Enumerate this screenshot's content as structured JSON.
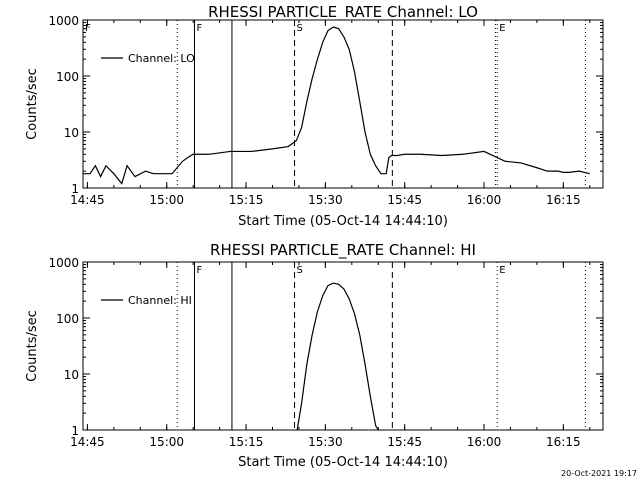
{
  "chart_data": [
    {
      "type": "line",
      "title": "RHESSI PARTICLE_RATE Channel: LO",
      "xlabel": "Start Time (05-Oct-14 14:44:10)",
      "ylabel": "Counts/sec",
      "y_scale": "log",
      "ylim": [
        1,
        1000
      ],
      "xlim": [
        "14:44:10",
        "16:22:30"
      ],
      "x_ticks": [
        "14:45",
        "15:00",
        "15:15",
        "15:30",
        "15:45",
        "16:00",
        "16:15"
      ],
      "y_ticks": [
        "1",
        "10",
        "100",
        "1000"
      ],
      "grid": false,
      "legend": "top-left",
      "series": [
        {
          "name": "Channel: LO",
          "x": [
            "14:44:10",
            "14:45:30",
            "14:46:30",
            "14:47:30",
            "14:48:30",
            "14:50:00",
            "14:51:30",
            "14:52:30",
            "14:54:00",
            "14:56:00",
            "14:57:30",
            "14:59:00",
            "15:01:00",
            "15:03:00",
            "15:04:00",
            "15:05:00",
            "15:08:00",
            "15:12:00",
            "15:16:00",
            "15:20:00",
            "15:23:00",
            "15:24:30",
            "15:25:30",
            "15:26:30",
            "15:27:30",
            "15:28:30",
            "15:29:30",
            "15:30:30",
            "15:31:30",
            "15:32:30",
            "15:33:30",
            "15:34:30",
            "15:35:30",
            "15:36:30",
            "15:37:30",
            "15:38:30",
            "15:39:30",
            "15:40:30",
            "15:41:30",
            "15:42:00",
            "15:42:30",
            "15:43:30",
            "15:45:00",
            "15:48:00",
            "15:52:00",
            "15:56:00",
            "16:00:00",
            "16:04:00",
            "16:07:00",
            "16:10:00",
            "16:12:00",
            "16:14:00",
            "16:15:00",
            "16:16:00",
            "16:18:00",
            "16:20:00"
          ],
          "y": [
            1.8,
            1.8,
            2.5,
            1.6,
            2.5,
            1.8,
            1.2,
            2.5,
            1.6,
            2.0,
            1.8,
            1.8,
            1.8,
            3.0,
            3.5,
            4.0,
            4.0,
            4.5,
            4.5,
            5.0,
            5.5,
            7.0,
            12,
            35,
            90,
            200,
            400,
            650,
            750,
            700,
            500,
            300,
            120,
            35,
            10,
            4,
            2.5,
            1.8,
            1.8,
            3.5,
            3.8,
            3.8,
            4.0,
            4.0,
            3.8,
            4.0,
            4.5,
            3.0,
            2.8,
            2.3,
            2.0,
            2.0,
            1.9,
            1.9,
            2.0,
            1.8
          ]
        }
      ],
      "annotations": [
        {
          "text": "F",
          "x": "14:44:10",
          "style": "dotted"
        },
        {
          "text": "F",
          "x": "15:05:15",
          "style": "solid"
        },
        {
          "text": "",
          "x": "15:12:20",
          "style": "solid"
        },
        {
          "text": "S",
          "x": "15:24:10",
          "style": "dashed"
        },
        {
          "text": "",
          "x": "15:42:40",
          "style": "dashed"
        },
        {
          "text": "E",
          "x": "16:02:30",
          "style": "dotted"
        },
        {
          "text": "",
          "x": "16:02:10",
          "style": "dotted"
        },
        {
          "text": "",
          "x": "16:19:10",
          "style": "dotted"
        },
        {
          "text": "",
          "x": "15:02:00",
          "style": "dotted"
        }
      ]
    },
    {
      "type": "line",
      "title": "RHESSI PARTICLE_RATE Channel: HI",
      "xlabel": "Start Time (05-Oct-14 14:44:10)",
      "ylabel": "Counts/sec",
      "y_scale": "log",
      "ylim": [
        1,
        1000
      ],
      "xlim": [
        "14:44:10",
        "16:22:30"
      ],
      "x_ticks": [
        "14:45",
        "15:00",
        "15:15",
        "15:30",
        "15:45",
        "16:00",
        "16:15"
      ],
      "y_ticks": [
        "1",
        "10",
        "100",
        "1000"
      ],
      "grid": false,
      "legend": "top-left",
      "series": [
        {
          "name": "Channel: HI",
          "x": [
            "15:24:40",
            "15:25:30",
            "15:26:30",
            "15:27:30",
            "15:28:30",
            "15:29:30",
            "15:30:30",
            "15:31:30",
            "15:32:30",
            "15:33:30",
            "15:34:30",
            "15:35:30",
            "15:36:30",
            "15:37:30",
            "15:38:30",
            "15:39:30",
            "15:40:00"
          ],
          "y": [
            1.0,
            3,
            15,
            50,
            130,
            250,
            380,
            420,
            400,
            330,
            220,
            120,
            50,
            15,
            4,
            1.2,
            1.0
          ]
        }
      ],
      "annotations": [
        {
          "text": "F",
          "x": "15:05:15",
          "style": "solid"
        },
        {
          "text": "",
          "x": "15:12:20",
          "style": "solid"
        },
        {
          "text": "S",
          "x": "15:24:10",
          "style": "dashed"
        },
        {
          "text": "",
          "x": "15:42:40",
          "style": "dashed"
        },
        {
          "text": "E",
          "x": "16:02:30",
          "style": "dotted"
        },
        {
          "text": "",
          "x": "16:19:10",
          "style": "dotted"
        },
        {
          "text": "",
          "x": "15:02:00",
          "style": "dotted"
        }
      ]
    }
  ],
  "footer": {
    "timestamp": "20-Oct-2021 19:17"
  }
}
